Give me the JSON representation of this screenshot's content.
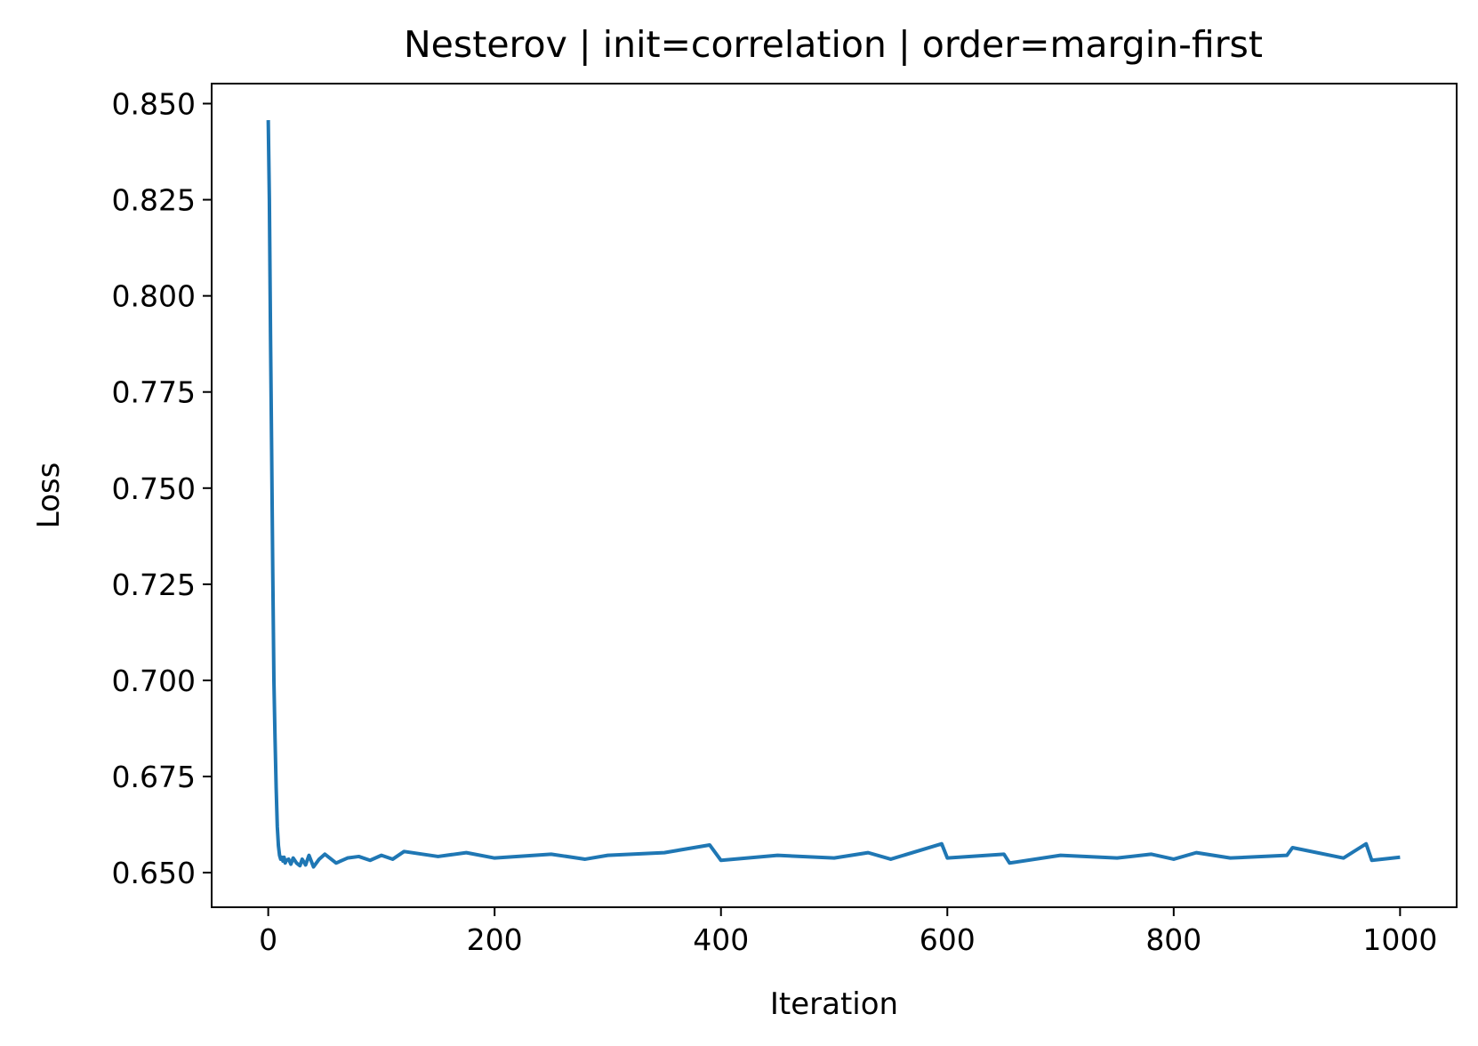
{
  "chart_data": {
    "type": "line",
    "title": "Nesterov | init=correlation | order=margin-first",
    "xlabel": "Iteration",
    "ylabel": "Loss",
    "xlim": [
      -50,
      1050
    ],
    "ylim": [
      0.641,
      0.8552
    ],
    "xticks": [
      0,
      200,
      400,
      600,
      800,
      1000
    ],
    "xtick_labels": [
      "0",
      "200",
      "400",
      "600",
      "800",
      "1000"
    ],
    "yticks": [
      0.65,
      0.675,
      0.7,
      0.725,
      0.75,
      0.775,
      0.8,
      0.825,
      0.85
    ],
    "ytick_labels": [
      "0.650",
      "0.675",
      "0.700",
      "0.725",
      "0.750",
      "0.775",
      "0.800",
      "0.825",
      "0.850"
    ],
    "grid": false,
    "series_color": "#1f77b4",
    "series": [
      {
        "x": [
          0,
          1,
          2,
          3,
          4,
          5,
          6,
          7,
          8,
          9,
          10,
          11,
          12,
          13,
          14,
          15,
          16,
          18,
          20,
          22,
          25,
          28,
          30,
          33,
          36,
          40,
          45,
          50,
          60,
          70,
          80,
          90,
          100,
          110,
          120,
          150,
          175,
          200,
          250,
          280,
          300,
          350,
          390,
          400,
          450,
          500,
          530,
          550,
          595,
          600,
          650,
          655,
          700,
          750,
          780,
          800,
          820,
          850,
          900,
          905,
          950,
          970,
          975,
          1000
        ],
        "values": [
          0.8457,
          0.825,
          0.79,
          0.76,
          0.728,
          0.7,
          0.685,
          0.672,
          0.662,
          0.657,
          0.6545,
          0.6535,
          0.654,
          0.653,
          0.654,
          0.6525,
          0.6532,
          0.6535,
          0.6522,
          0.6538,
          0.6525,
          0.6518,
          0.6535,
          0.652,
          0.6545,
          0.6515,
          0.6535,
          0.6548,
          0.6525,
          0.6538,
          0.6542,
          0.6532,
          0.6545,
          0.6535,
          0.6555,
          0.6542,
          0.6552,
          0.6538,
          0.6548,
          0.6535,
          0.6545,
          0.6552,
          0.6572,
          0.6532,
          0.6545,
          0.6538,
          0.6552,
          0.6535,
          0.6575,
          0.6538,
          0.6548,
          0.6525,
          0.6545,
          0.6538,
          0.6548,
          0.6535,
          0.6552,
          0.6538,
          0.6545,
          0.6565,
          0.6538,
          0.6575,
          0.6532,
          0.654
        ]
      }
    ]
  }
}
